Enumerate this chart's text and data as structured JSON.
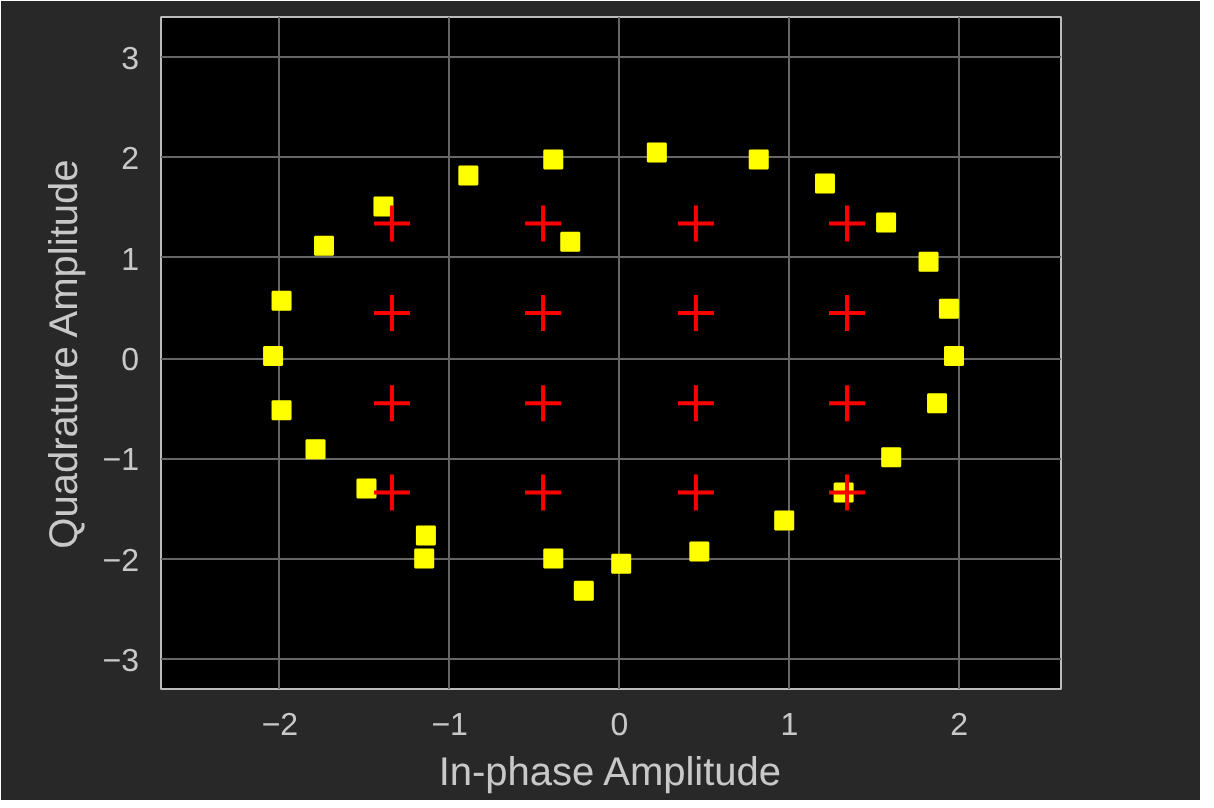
{
  "chart_data": {
    "type": "scatter",
    "xlabel": "In-phase Amplitude",
    "ylabel": "Quadrature Amplitude",
    "xlim": [
      -2.7,
      2.6
    ],
    "ylim": [
      -3.3,
      3.4
    ],
    "xticks": [
      -2,
      -1,
      0,
      1,
      2
    ],
    "yticks": [
      -3,
      -2,
      -1,
      0,
      1,
      2,
      3
    ],
    "grid": true,
    "series": [
      {
        "color": "#ffff00",
        "marker": "square",
        "x": [
          -0.39,
          0.01,
          0.47,
          0.97,
          1.32,
          1.6,
          1.87,
          1.97,
          1.94,
          1.82,
          1.57,
          1.21,
          0.82,
          0.22,
          -0.39,
          -0.89,
          -1.39,
          -1.74,
          -1.99,
          -2.04,
          -1.99,
          -1.79,
          -1.49,
          -1.14,
          -0.29,
          -0.21,
          -1.15
        ],
        "values": [
          -2.0,
          -2.05,
          -1.93,
          -1.62,
          -1.34,
          -0.99,
          -0.45,
          0.02,
          0.49,
          0.96,
          1.35,
          1.74,
          1.98,
          2.05,
          1.98,
          1.82,
          1.51,
          1.12,
          0.57,
          0.02,
          -0.52,
          -0.91,
          -1.3,
          -1.77,
          1.16,
          -2.32,
          -2.0
        ]
      },
      {
        "color": "#ff0000",
        "marker": "cross",
        "x": [
          -1.34,
          -0.45,
          0.45,
          1.34,
          -1.34,
          -0.45,
          0.45,
          1.34,
          -1.34,
          -0.45,
          0.45,
          1.34,
          -1.34,
          -0.45,
          0.45,
          1.34
        ],
        "values": [
          1.34,
          1.34,
          1.34,
          1.34,
          0.45,
          0.45,
          0.45,
          0.45,
          -0.45,
          -0.45,
          -0.45,
          -0.45,
          -1.34,
          -1.34,
          -1.34,
          -1.34
        ]
      }
    ]
  }
}
